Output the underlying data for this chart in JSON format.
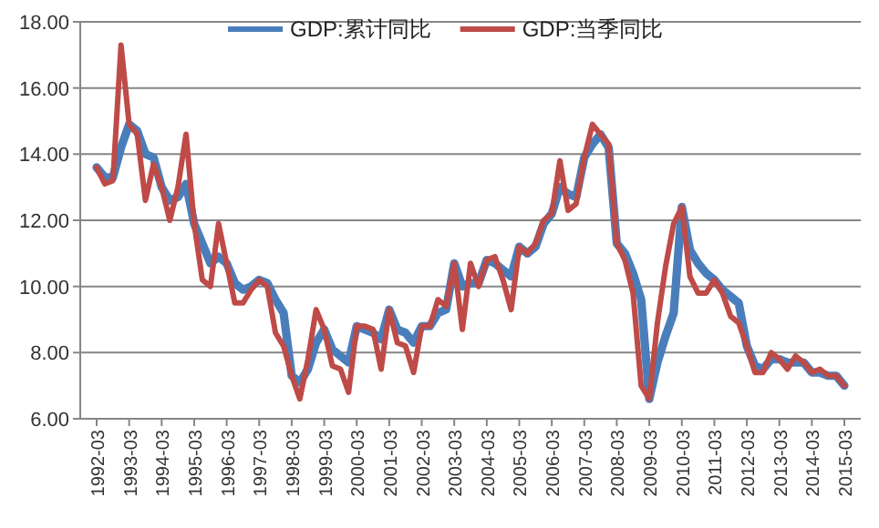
{
  "chart_data": {
    "type": "line",
    "categories": [
      "1992-03",
      null,
      null,
      null,
      "1993-03",
      null,
      null,
      null,
      "1994-03",
      null,
      null,
      null,
      "1995-03",
      null,
      null,
      null,
      "1996-03",
      null,
      null,
      null,
      "1997-03",
      null,
      null,
      null,
      "1998-03",
      null,
      null,
      null,
      "1999-03",
      null,
      null,
      null,
      "2000-03",
      null,
      null,
      null,
      "2001-03",
      null,
      null,
      null,
      "2002-03",
      null,
      null,
      null,
      "2003-03",
      null,
      null,
      null,
      "2004-03",
      null,
      null,
      null,
      "2005-03",
      null,
      null,
      null,
      "2006-03",
      null,
      null,
      null,
      "2007-03",
      null,
      null,
      null,
      "2008-03",
      null,
      null,
      null,
      "2009-03",
      null,
      null,
      null,
      "2010-03",
      null,
      null,
      null,
      "2011-03",
      null,
      null,
      null,
      "2012-03",
      null,
      null,
      null,
      "2013-03",
      null,
      null,
      null,
      "2014-03",
      null,
      null,
      null,
      "2015-03"
    ],
    "series": [
      {
        "name": "GDP:累计同比",
        "color": "#4a7ebb",
        "values": [
          13.6,
          13.3,
          13.3,
          14.2,
          14.9,
          14.7,
          14.0,
          13.9,
          13.0,
          12.6,
          12.7,
          13.1,
          11.9,
          11.3,
          10.7,
          10.9,
          10.7,
          10.1,
          9.9,
          10.0,
          10.2,
          10.1,
          9.6,
          9.2,
          7.3,
          7.1,
          7.5,
          8.3,
          8.7,
          8.1,
          7.9,
          7.7,
          8.8,
          8.7,
          8.6,
          8.4,
          9.3,
          8.7,
          8.6,
          8.3,
          8.8,
          8.8,
          9.2,
          9.3,
          10.7,
          10.0,
          10.1,
          10.1,
          10.8,
          10.7,
          10.5,
          10.3,
          11.2,
          11.0,
          11.2,
          11.9,
          12.2,
          13.0,
          12.8,
          12.7,
          13.9,
          14.3,
          14.6,
          14.2,
          11.3,
          11.0,
          10.4,
          9.6,
          6.6,
          7.7,
          8.5,
          9.2,
          12.4,
          11.1,
          10.7,
          10.4,
          10.2,
          9.9,
          9.7,
          9.5,
          8.2,
          7.6,
          7.5,
          7.8,
          7.8,
          7.7,
          7.7,
          7.7,
          7.4,
          7.4,
          7.3,
          7.3,
          7.0
        ]
      },
      {
        "name": "GDP:当季同比",
        "color": "#be4b48",
        "values": [
          13.6,
          13.1,
          13.2,
          17.3,
          14.9,
          14.6,
          12.6,
          13.7,
          13.0,
          12.0,
          13.0,
          14.6,
          11.9,
          10.2,
          10.0,
          11.9,
          10.7,
          9.5,
          9.5,
          9.9,
          10.2,
          10.0,
          8.6,
          8.2,
          7.3,
          6.6,
          7.8,
          9.3,
          8.7,
          7.6,
          7.5,
          6.8,
          8.8,
          8.8,
          8.7,
          7.5,
          9.3,
          8.3,
          8.2,
          7.4,
          8.8,
          8.8,
          9.6,
          9.4,
          10.7,
          8.7,
          10.7,
          10.0,
          10.8,
          10.9,
          10.2,
          9.3,
          11.2,
          11.0,
          11.3,
          12.0,
          12.2,
          13.8,
          12.3,
          12.5,
          13.9,
          14.9,
          14.6,
          14.3,
          11.3,
          10.8,
          9.8,
          7.0,
          6.6,
          8.9,
          10.6,
          11.9,
          12.4,
          10.3,
          9.8,
          9.8,
          10.2,
          9.8,
          9.1,
          8.9,
          8.2,
          7.4,
          7.4,
          8.0,
          7.8,
          7.5,
          7.9,
          7.7,
          7.4,
          7.5,
          7.3,
          7.3,
          7.0
        ]
      }
    ],
    "ylim": [
      6,
      18
    ],
    "yticks": [
      {
        "value": 6,
        "label": "6.00"
      },
      {
        "value": 8,
        "label": "8.00"
      },
      {
        "value": 10,
        "label": "10.00"
      },
      {
        "value": 12,
        "label": "12.00"
      },
      {
        "value": 14,
        "label": "14.00"
      },
      {
        "value": 16,
        "label": "16.00"
      },
      {
        "value": 18,
        "label": "18.00"
      }
    ],
    "grid": "y",
    "legend": "top"
  }
}
